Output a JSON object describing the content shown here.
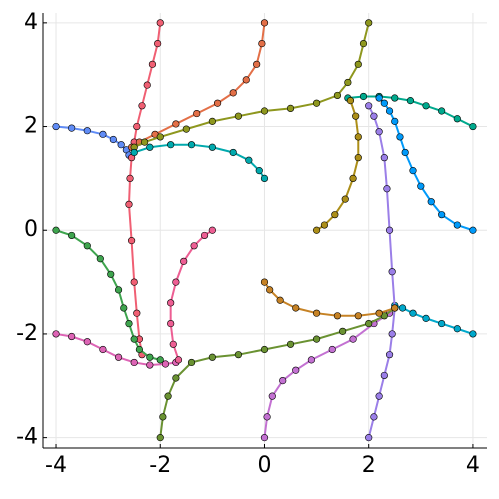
{
  "chart_data": {
    "type": "line",
    "grid": true,
    "xlim": [
      -4.25,
      4.27
    ],
    "ylim": [
      -4.2,
      4.19
    ],
    "xticks": [
      -4,
      -2,
      0,
      2,
      4
    ],
    "yticks": [
      -4,
      -2,
      0,
      2,
      4
    ],
    "series": [
      {
        "color": "#608CF6",
        "x": [
          -4,
          -3.7,
          -3.4,
          -3.1,
          -2.9,
          -2.75,
          -2.65,
          -2.6
        ],
        "y": [
          2,
          1.97,
          1.92,
          1.85,
          1.75,
          1.65,
          1.55,
          1.45
        ]
      },
      {
        "color": "#F05F73",
        "x": [
          -2,
          -2.05,
          -2.15,
          -2.25,
          -2.35,
          -2.45,
          -2.5,
          -2.55,
          -2.58,
          -2.6,
          -2.55,
          -2.5,
          -2.45,
          -2.4,
          -2.35
        ],
        "y": [
          4,
          3.6,
          3.2,
          2.8,
          2.4,
          2.0,
          1.7,
          1.4,
          1.0,
          0.5,
          -0.2,
          -1.0,
          -1.6,
          -2.1,
          -2.4
        ]
      },
      {
        "color": "#E36F47",
        "x": [
          0,
          -0.05,
          -0.15,
          -0.35,
          -0.6,
          -0.9,
          -1.3,
          -1.7,
          -2.1,
          -2.4,
          -2.55
        ],
        "y": [
          4,
          3.6,
          3.2,
          2.9,
          2.65,
          2.45,
          2.25,
          2.05,
          1.85,
          1.7,
          1.6
        ]
      },
      {
        "color": "#8E971E",
        "x": [
          2,
          1.9,
          1.8,
          1.6,
          1.4,
          1.0,
          0.5,
          0,
          -0.5,
          -1,
          -1.5,
          -2,
          -2.3,
          -2.5
        ],
        "y": [
          4,
          3.6,
          3.2,
          2.85,
          2.6,
          2.45,
          2.35,
          2.3,
          2.2,
          2.1,
          1.95,
          1.8,
          1.7,
          1.6
        ]
      },
      {
        "color": "#00A98D",
        "x": [
          4,
          3.7,
          3.4,
          3.1,
          2.8,
          2.5,
          2.2,
          1.9,
          1.6
        ],
        "y": [
          2,
          2.15,
          2.3,
          2.4,
          2.5,
          2.55,
          2.58,
          2.58,
          2.55
        ]
      },
      {
        "color": "#009AFA",
        "x": [
          4,
          3.7,
          3.4,
          3.2,
          3.0,
          2.85,
          2.7,
          2.6,
          2.5,
          2.4,
          2.3,
          2.2
        ],
        "y": [
          0,
          0.1,
          0.3,
          0.55,
          0.85,
          1.15,
          1.5,
          1.8,
          2.1,
          2.3,
          2.45,
          2.55
        ]
      },
      {
        "color": "#00A8CB",
        "x": [
          4,
          3.7,
          3.4,
          3.1,
          2.85,
          2.65,
          2.5
        ],
        "y": [
          -2,
          -1.9,
          -1.8,
          -1.7,
          -1.6,
          -1.5,
          -1.45
        ]
      },
      {
        "color": "#9B7FE8",
        "x": [
          2,
          2.1,
          2.2,
          2.3,
          2.4,
          2.45,
          2.5,
          2.45,
          2.4,
          2.35,
          2.3,
          2.2,
          2.1,
          2.0
        ],
        "y": [
          -4,
          -3.6,
          -3.2,
          -2.8,
          -2.4,
          -2,
          -1.5,
          -0.8,
          0,
          0.8,
          1.4,
          1.9,
          2.2,
          2.4
        ]
      },
      {
        "color": "#C371D2",
        "x": [
          0,
          0.05,
          0.15,
          0.35,
          0.6,
          0.9,
          1.3,
          1.7,
          2.1,
          2.4
        ],
        "y": [
          -4,
          -3.6,
          -3.2,
          -2.9,
          -2.7,
          -2.5,
          -2.3,
          -2.1,
          -1.8,
          -1.6
        ]
      },
      {
        "color": "#6A9232",
        "x": [
          -2,
          -1.95,
          -1.85,
          -1.7,
          -1.4,
          -1,
          -0.5,
          0,
          0.5,
          1,
          1.5,
          2,
          2.3,
          2.5
        ],
        "y": [
          -4,
          -3.6,
          -3.2,
          -2.85,
          -2.55,
          -2.45,
          -2.4,
          -2.3,
          -2.2,
          -2.1,
          -1.95,
          -1.8,
          -1.65,
          -1.5
        ]
      },
      {
        "color": "#DD64B5",
        "x": [
          -4,
          -3.7,
          -3.4,
          -3.1,
          -2.8,
          -2.5,
          -2.2,
          -1.9,
          -1.7
        ],
        "y": [
          -2,
          -2.05,
          -2.15,
          -2.3,
          -2.45,
          -2.55,
          -2.6,
          -2.58,
          -2.55
        ]
      },
      {
        "color": "#3EA44E",
        "x": [
          -4,
          -3.7,
          -3.4,
          -3.15,
          -2.95,
          -2.8,
          -2.7,
          -2.6,
          -2.5,
          -2.4,
          -2.2,
          -2
        ],
        "y": [
          0,
          -0.1,
          -0.3,
          -0.55,
          -0.85,
          -1.15,
          -1.5,
          -1.8,
          -2.1,
          -2.3,
          -2.45,
          -2.5
        ]
      },
      {
        "color": "#00A9AD",
        "x": [
          0,
          -0.1,
          -0.3,
          -0.6,
          -1,
          -1.4,
          -1.8,
          -2.2,
          -2.5
        ],
        "y": [
          1,
          1.15,
          1.35,
          1.5,
          1.6,
          1.65,
          1.65,
          1.6,
          1.5
        ]
      },
      {
        "color": "#ED5E93",
        "x": [
          -1,
          -1.15,
          -1.35,
          -1.55,
          -1.7,
          -1.8,
          -1.8,
          -1.75,
          -1.65
        ],
        "y": [
          0,
          -0.1,
          -0.3,
          -0.6,
          -1,
          -1.4,
          -1.8,
          -2.2,
          -2.5
        ]
      },
      {
        "color": "#AC8E18",
        "x": [
          1,
          1.15,
          1.35,
          1.55,
          1.7,
          1.8,
          1.8,
          1.75,
          1.65
        ],
        "y": [
          0,
          0.1,
          0.3,
          0.6,
          1,
          1.4,
          1.8,
          2.2,
          2.5
        ]
      },
      {
        "color": "#C68225",
        "x": [
          0,
          0.1,
          0.3,
          0.6,
          1,
          1.4,
          1.8,
          2.2,
          2.5
        ],
        "y": [
          -1,
          -1.15,
          -1.35,
          -1.5,
          -1.6,
          -1.65,
          -1.65,
          -1.6,
          -1.5
        ]
      }
    ]
  }
}
